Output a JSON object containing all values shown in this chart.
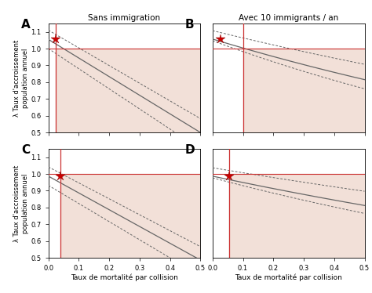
{
  "title_A": "Sans immigration",
  "title_B": "Avec 10 immigrants / an",
  "label_A": "A",
  "label_B": "B",
  "label_C": "C",
  "label_D": "D",
  "xlabel": "Taux de mortalité par collision",
  "ylabel": "λ Taux d'accroissement\npopulation annuel",
  "xlim": [
    0.0,
    0.5
  ],
  "ylim": [
    0.5,
    1.15
  ],
  "yticks": [
    0.5,
    0.6,
    0.7,
    0.8,
    0.9,
    1.0,
    1.1
  ],
  "xticks": [
    0.0,
    0.1,
    0.2,
    0.3,
    0.4,
    0.5
  ],
  "vline_A": 0.025,
  "vline_B": 0.1,
  "vline_C": 0.04,
  "vline_D": 0.055,
  "hline": 1.0,
  "star_A": [
    0.025,
    1.055
  ],
  "star_B": [
    0.025,
    1.055
  ],
  "star_C": [
    0.04,
    0.985
  ],
  "star_D": [
    0.055,
    0.985
  ],
  "line_color": "#666666",
  "star_color": "#cc0000",
  "vline_color": "#cc3333",
  "hline_color": "#cc3333",
  "shade_color": "#f2e0d8",
  "background_color": "#ffffff"
}
